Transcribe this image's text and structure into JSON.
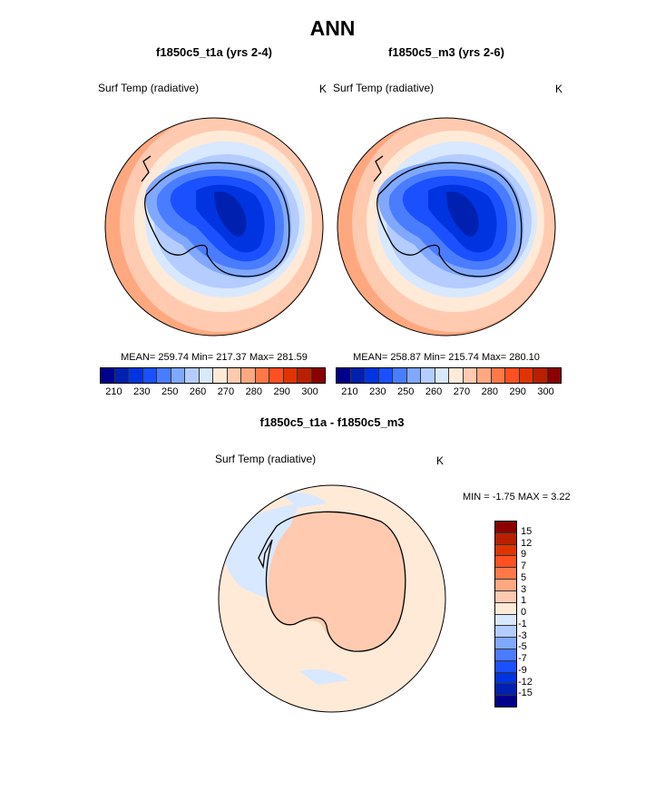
{
  "title": "ANN",
  "panels": [
    {
      "subtitle": "f1850c5_t1a (yrs 2-4)",
      "variable": "Surf Temp (radiative)",
      "units": "K",
      "stats": "MEAN= 259.74  Min= 217.37  Max= 281.59"
    },
    {
      "subtitle": "f1850c5_m3 (yrs 2-6)",
      "variable": "Surf Temp (radiative)",
      "units": "K",
      "stats": "MEAN= 258.87  Min= 215.74  Max= 280.10"
    }
  ],
  "diff": {
    "subtitle": "f1850c5_t1a - f1850c5_m3",
    "variable": "Surf Temp (radiative)",
    "units": "K",
    "stats": "MIN =  -1.75 MAX =   3.22"
  },
  "colorbar": {
    "colors": [
      "#00008b",
      "#0020b0",
      "#0034e0",
      "#1a50ff",
      "#4a7cff",
      "#80a8ff",
      "#b4ccff",
      "#d8e8ff",
      "#ffead8",
      "#ffcab0",
      "#ffa880",
      "#ff7848",
      "#ff5020",
      "#e03400",
      "#b82000",
      "#8b0000"
    ],
    "labels": [
      "210",
      "230",
      "250",
      "260",
      "270",
      "280",
      "290",
      "300"
    ]
  },
  "diff_colorbar": {
    "colors": [
      "#8b0000",
      "#b82000",
      "#e03400",
      "#ff5020",
      "#ff7848",
      "#ffa880",
      "#ffcab0",
      "#ffead8",
      "#d8e8ff",
      "#b4ccff",
      "#80a8ff",
      "#4a7cff",
      "#1a50ff",
      "#0034e0",
      "#0020b0",
      "#00008b"
    ],
    "labels": [
      "15",
      "12",
      "9",
      "7",
      "5",
      "3",
      "1",
      "0",
      "-1",
      "-3",
      "-5",
      "-7",
      "-9",
      "-12",
      "-15"
    ]
  }
}
